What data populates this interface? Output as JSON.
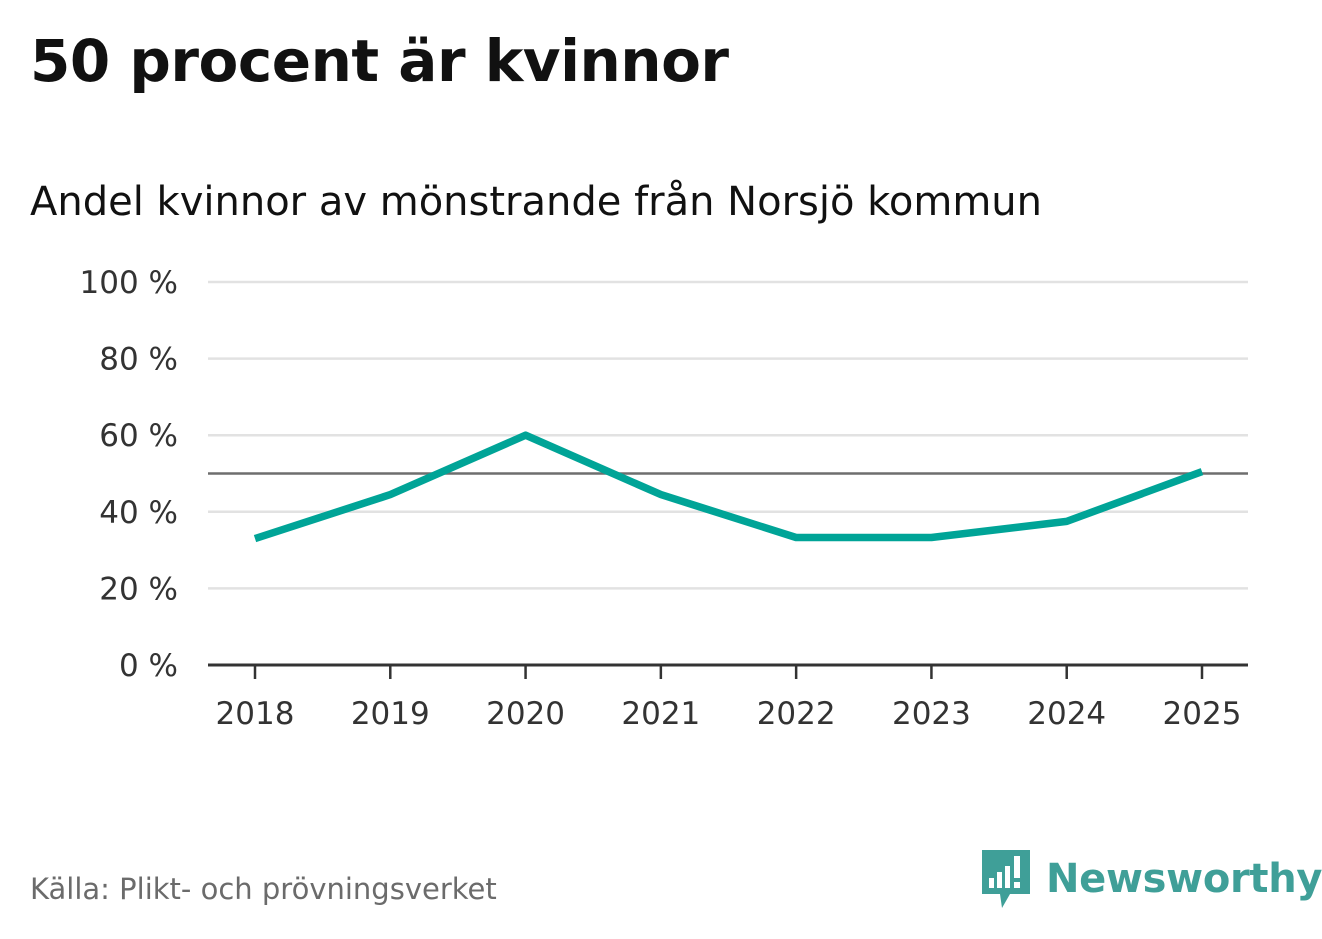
{
  "title": "50 procent är kvinnor",
  "subtitle": "Andel kvinnor av mönstrande från Norsjö kommun",
  "source": "Källa: Plikt- och prövningsverket",
  "brand": {
    "name": "Newsworthy",
    "icon": "newsworthy-logo-icon"
  },
  "colors": {
    "line": "#00a497",
    "grid": "#e2e2e2",
    "reference": "#6e6e6e",
    "axis": "#333333",
    "brand": "#3f9f98"
  },
  "chart_data": {
    "type": "line",
    "title": "50 procent är kvinnor",
    "subtitle": "Andel kvinnor av mönstrande från Norsjö kommun",
    "xlabel": "",
    "ylabel": "",
    "categories": [
      "2018",
      "2019",
      "2020",
      "2021",
      "2022",
      "2023",
      "2024",
      "2025"
    ],
    "series": [
      {
        "values": [
          33,
          44.5,
          60,
          44.5,
          33.3,
          33.3,
          37.5,
          50.5
        ]
      }
    ],
    "reference_line": 50,
    "ylim": [
      0,
      100
    ],
    "y_ticks": [
      0,
      20,
      40,
      60,
      80,
      100
    ],
    "y_tick_labels": [
      "0 %",
      "20 %",
      "40 %",
      "60 %",
      "80 %",
      "100 %"
    ],
    "grid": true,
    "legend": "none"
  }
}
